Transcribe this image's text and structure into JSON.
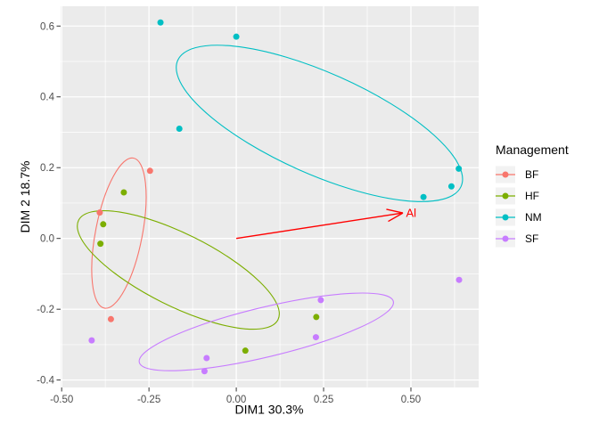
{
  "chart_data": {
    "type": "scatter",
    "title": "",
    "xlabel": "DIM1 30.3%",
    "ylabel": "DIM 2 18.7%",
    "xlim": [
      -0.503,
      0.694
    ],
    "ylim": [
      -0.421,
      0.656
    ],
    "grid": {
      "major": true,
      "minor": true
    },
    "panel_bg": "#EBEBEB",
    "gridline_color": "#FFFFFF",
    "tick_color": "#333333",
    "tick_text_color": "#4D4D4D",
    "x_axis": {
      "major_ticks": [
        -0.5,
        -0.25,
        0.0,
        0.25,
        0.5
      ],
      "tick_labels": [
        "-0.50",
        "-0.25",
        "0.00",
        "0.25",
        "0.50"
      ],
      "minor_ticks": [
        -0.375,
        -0.125,
        0.125,
        0.375,
        0.625
      ]
    },
    "y_axis": {
      "major_ticks": [
        -0.4,
        -0.2,
        0.0,
        0.2,
        0.4,
        0.6
      ],
      "tick_labels": [
        "-0.4",
        "-0.2",
        "0.0",
        "0.2",
        "0.4",
        "0.6"
      ],
      "minor_ticks": [
        -0.3,
        -0.1,
        0.1,
        0.3,
        0.5
      ]
    },
    "legend": {
      "title": "Management",
      "position": "right",
      "entries": [
        "BF",
        "HF",
        "NM",
        "SF"
      ]
    },
    "series": [
      {
        "name": "BF",
        "color": "#F8766D",
        "points": [
          [
            -0.247,
            0.191
          ],
          [
            -0.391,
            0.073
          ],
          [
            -0.359,
            -0.228
          ]
        ],
        "ellipse": {
          "cx": -0.336,
          "cy": 0.015,
          "rx": 0.219,
          "ry": 0.066,
          "angle_deg": 79
        }
      },
      {
        "name": "HF",
        "color": "#7CAE00",
        "points": [
          [
            -0.322,
            0.13
          ],
          [
            -0.381,
            0.04
          ],
          [
            -0.389,
            -0.015
          ],
          [
            0.026,
            -0.317
          ],
          [
            0.229,
            -0.222
          ]
        ],
        "ellipse": {
          "cx": -0.166,
          "cy": -0.089,
          "rx": 0.319,
          "ry": 0.102,
          "angle_deg": -26.5
        }
      },
      {
        "name": "NM",
        "color": "#00BFC4",
        "points": [
          [
            -0.217,
            0.61
          ],
          [
            0.0,
            0.57
          ],
          [
            -0.163,
            0.31
          ],
          [
            0.536,
            0.117
          ],
          [
            0.616,
            0.147
          ],
          [
            0.637,
            0.197
          ]
        ],
        "ellipse": {
          "cx": 0.238,
          "cy": 0.325,
          "rx": 0.444,
          "ry": 0.143,
          "angle_deg": -24
        }
      },
      {
        "name": "SF",
        "color": "#C77CFF",
        "points": [
          [
            -0.414,
            -0.288
          ],
          [
            -0.085,
            -0.338
          ],
          [
            -0.091,
            -0.375
          ],
          [
            0.242,
            -0.174
          ],
          [
            0.228,
            -0.279
          ],
          [
            0.638,
            -0.117
          ]
        ],
        "ellipse": {
          "cx": 0.086,
          "cy": -0.264,
          "rx": 0.374,
          "ry": 0.07,
          "angle_deg": 13.5
        }
      }
    ],
    "arrow": {
      "label": "Al",
      "color": "#FF0000",
      "from": [
        0.0,
        0.0
      ],
      "to": [
        0.477,
        0.072
      ]
    }
  }
}
